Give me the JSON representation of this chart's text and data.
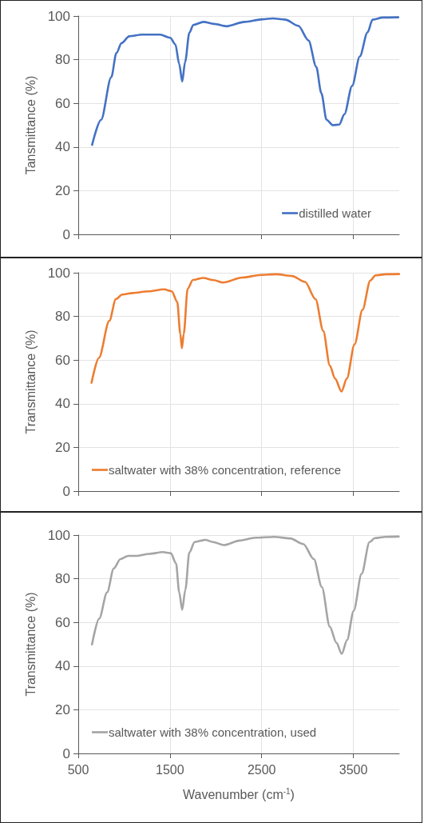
{
  "chart_data": [
    {
      "type": "line",
      "ylabel": "Tansmittance (%)",
      "xlim": [
        500,
        4000
      ],
      "xticks": [
        500,
        1500,
        2500,
        3500
      ],
      "ylim": [
        0,
        100
      ],
      "yticks": [
        0,
        20,
        40,
        60,
        80,
        100
      ],
      "grid": true,
      "legend": "bottom right",
      "tick_labels": "y",
      "marker": "none",
      "line_style": "solid",
      "series": [
        {
          "name": "distilled water",
          "color": "#4472c4",
          "x": [
            651,
            749,
            860,
            916,
            972,
            1056,
            1196,
            1391,
            1503,
            1559,
            1601,
            1634,
            1665,
            1712,
            1754,
            1866,
            1978,
            2117,
            2313,
            2508,
            2620,
            2760,
            2899,
            3011,
            3095,
            3151,
            3207,
            3277,
            3346,
            3402,
            3486,
            3570,
            3654,
            3709,
            3821,
            3989
          ],
          "values": [
            41,
            52.5,
            72,
            83,
            87.6,
            90.7,
            91.5,
            91.5,
            90,
            87,
            78,
            70,
            79,
            92.4,
            95.9,
            97.3,
            96.4,
            95.3,
            97.3,
            98.5,
            98.9,
            98.3,
            95.5,
            88.8,
            76.7,
            64.6,
            52.5,
            50,
            50.3,
            55,
            68,
            81.5,
            92.5,
            98.3,
            99.3,
            99.4
          ]
        }
      ]
    },
    {
      "type": "line",
      "ylabel": "Transmittance (%)",
      "xlim": [
        500,
        4000
      ],
      "xticks": [
        500,
        1500,
        2500,
        3500
      ],
      "ylim": [
        0,
        100
      ],
      "yticks": [
        0,
        20,
        40,
        60,
        80,
        100
      ],
      "grid": true,
      "legend": "bottom",
      "tick_labels": "y",
      "marker": "none",
      "line_style": "solid",
      "series": [
        {
          "name": "saltwater with 38% concentration, reference",
          "color": "#ed7d31",
          "x": [
            645,
            725,
            839,
            910,
            981,
            1095,
            1266,
            1435,
            1520,
            1579,
            1613,
            1630,
            1650,
            1693,
            1750,
            1864,
            1977,
            2077,
            2290,
            2490,
            2660,
            2831,
            2973,
            3087,
            3172,
            3243,
            3300,
            3371,
            3428,
            3513,
            3599,
            3684,
            3741,
            3855,
            3998
          ],
          "values": [
            49.6,
            61,
            78,
            87.9,
            90,
            90.7,
            91.5,
            92.4,
            91.5,
            86.7,
            72,
            65.4,
            72,
            92.7,
            96.7,
            97.6,
            96.6,
            95.5,
            97.8,
            99,
            99.3,
            98.5,
            95.8,
            87.9,
            73.3,
            57.5,
            51.5,
            45.6,
            51.5,
            67.2,
            83,
            96.4,
            98.8,
            99.3,
            99.4
          ]
        }
      ]
    },
    {
      "type": "line",
      "ylabel": "Transmittance (%)",
      "xlabel": "Wavenumber (cm$^{-1}$)",
      "xlim": [
        500,
        4000
      ],
      "xticks": [
        500,
        1500,
        2500,
        3500
      ],
      "ylim": [
        0,
        100
      ],
      "yticks": [
        0,
        20,
        40,
        60,
        80,
        100
      ],
      "grid": true,
      "legend": "bottom",
      "marker": "none",
      "line_style": "solid",
      "series": [
        {
          "name": "saltwater with 38% concentration, used",
          "color": "#a5a5a5",
          "x": [
            650,
            728,
            815,
            887,
            960,
            1046,
            1133,
            1277,
            1422,
            1509,
            1566,
            1601,
            1633,
            1668,
            1711,
            1769,
            1884,
            1971,
            2087,
            2260,
            2434,
            2636,
            2809,
            2954,
            3069,
            3156,
            3243,
            3315,
            3373,
            3431,
            3503,
            3590,
            3676,
            3734,
            3850,
            3994
          ],
          "values": [
            49.9,
            61.7,
            73.8,
            84.7,
            89,
            90.5,
            90.5,
            91.4,
            92.2,
            91.7,
            87.1,
            73.8,
            65.8,
            75,
            92,
            96.8,
            97.8,
            96.8,
            95.4,
            97.5,
            98.8,
            99.2,
            98.5,
            95.9,
            89,
            76.2,
            58,
            50.7,
            45.6,
            51.9,
            65.3,
            82.3,
            96.8,
            98.6,
            99.2,
            99.3
          ]
        }
      ]
    }
  ]
}
